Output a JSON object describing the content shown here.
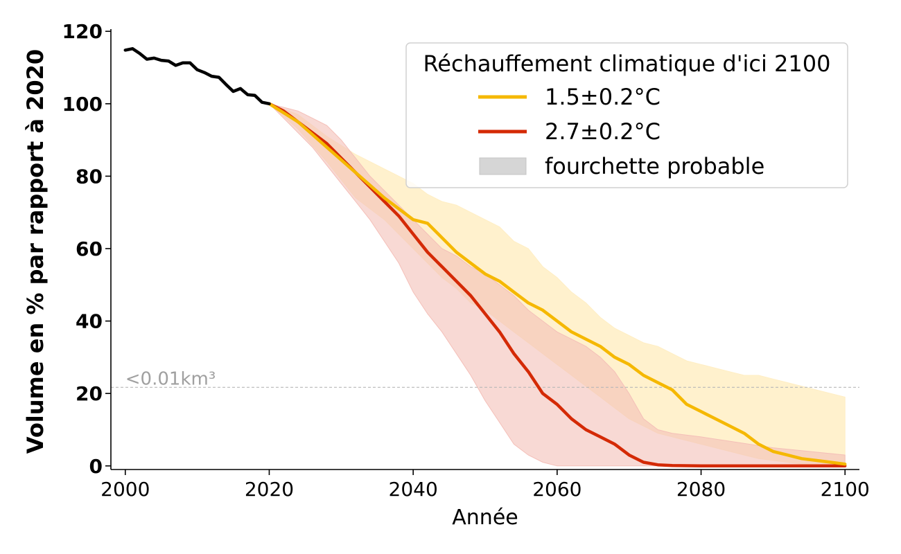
{
  "chart_data": {
    "type": "line",
    "xlabel": "Année",
    "ylabel": "Volume en % par rapport à 2020",
    "xlim": [
      1998,
      2102
    ],
    "ylim": [
      -1,
      121
    ],
    "xticks": [
      2000,
      2020,
      2040,
      2060,
      2080,
      2100
    ],
    "yticks": [
      0,
      20,
      40,
      60,
      80,
      100,
      120
    ],
    "grid": false,
    "historical": {
      "color": "#000000",
      "x": [
        2000,
        2001,
        2002,
        2003,
        2004,
        2005,
        2006,
        2007,
        2008,
        2009,
        2010,
        2011,
        2012,
        2013,
        2014,
        2015,
        2016,
        2017,
        2018,
        2019,
        2020
      ],
      "y": [
        114.8,
        115.2,
        113.9,
        112.3,
        112.6,
        112.0,
        111.8,
        110.6,
        111.3,
        111.3,
        109.4,
        108.6,
        107.6,
        107.3,
        105.3,
        103.4,
        104.2,
        102.5,
        102.3,
        100.4,
        100
      ]
    },
    "series": [
      {
        "name": "1.5±0.2°C",
        "color": "#f5b800",
        "band_color": "#ffeec4",
        "x": [
          2020,
          2024,
          2028,
          2032,
          2036,
          2040,
          2042,
          2044,
          2046,
          2048,
          2050,
          2052,
          2054,
          2056,
          2058,
          2060,
          2062,
          2064,
          2066,
          2068,
          2070,
          2072,
          2074,
          2076,
          2078,
          2080,
          2082,
          2084,
          2086,
          2088,
          2090,
          2092,
          2094,
          2096,
          2098,
          2100
        ],
        "y": [
          100,
          95,
          88,
          81,
          74,
          68,
          67,
          63,
          59,
          56,
          53,
          51,
          48,
          45,
          43,
          40,
          37,
          35,
          33,
          30,
          28,
          25,
          23,
          21,
          17,
          15,
          13,
          11,
          9,
          6,
          4,
          3,
          2,
          1.5,
          1,
          0.5
        ],
        "lower": [
          100,
          93,
          84,
          74,
          68,
          60,
          56,
          52,
          49,
          45,
          43,
          40,
          37,
          34,
          31,
          28,
          25,
          22,
          19,
          16,
          13,
          11,
          9,
          8,
          7,
          6,
          5,
          4,
          3,
          2,
          1.5,
          1,
          0.5,
          0.3,
          0.2,
          0.1
        ],
        "upper": [
          100,
          97,
          91,
          86,
          82,
          78,
          75,
          73,
          72,
          70,
          68,
          66,
          62,
          60,
          55,
          52,
          48,
          45,
          41,
          38,
          36,
          34,
          33,
          31,
          29,
          28,
          27,
          26,
          25,
          25,
          24,
          23,
          22,
          21,
          20,
          19
        ]
      },
      {
        "name": "2.7±0.2°C",
        "color": "#d42a06",
        "band_color": "#f4bfb8",
        "x": [
          2020,
          2022,
          2024,
          2026,
          2028,
          2030,
          2032,
          2034,
          2036,
          2038,
          2040,
          2042,
          2044,
          2046,
          2048,
          2050,
          2052,
          2054,
          2056,
          2058,
          2060,
          2062,
          2064,
          2066,
          2068,
          2070,
          2072,
          2074,
          2076,
          2080,
          2090,
          2100
        ],
        "y": [
          100,
          98,
          95,
          92,
          89,
          85,
          81,
          77,
          73,
          69,
          64,
          59,
          55,
          51,
          47,
          42,
          37,
          31,
          26,
          20,
          17,
          13,
          10,
          8,
          6,
          3,
          1,
          0.3,
          0.1,
          0,
          0,
          0
        ],
        "lower": [
          100,
          96,
          92,
          88,
          83,
          78,
          73,
          68,
          62,
          56,
          48,
          42,
          37,
          31,
          25,
          18,
          12,
          6,
          3,
          1,
          0,
          0,
          0,
          0,
          0,
          0,
          0,
          0,
          0,
          0,
          0,
          0
        ],
        "upper": [
          100,
          99,
          98,
          96,
          94,
          90,
          85,
          80,
          76,
          72,
          68,
          64,
          60,
          58,
          55,
          53,
          50,
          47,
          43,
          40,
          37,
          35,
          33,
          30,
          26,
          20,
          13,
          10,
          9,
          8,
          5,
          3
        ]
      }
    ],
    "legend": {
      "title": "Réchauffement climatique d'ici 2100",
      "position": "top-right",
      "entries": [
        "1.5±0.2°C",
        "2.7±0.2°C",
        "fourchette probable"
      ]
    },
    "annotation": {
      "text": "<0.01km³",
      "y": 21.7,
      "color": "#a0a0a0"
    }
  }
}
